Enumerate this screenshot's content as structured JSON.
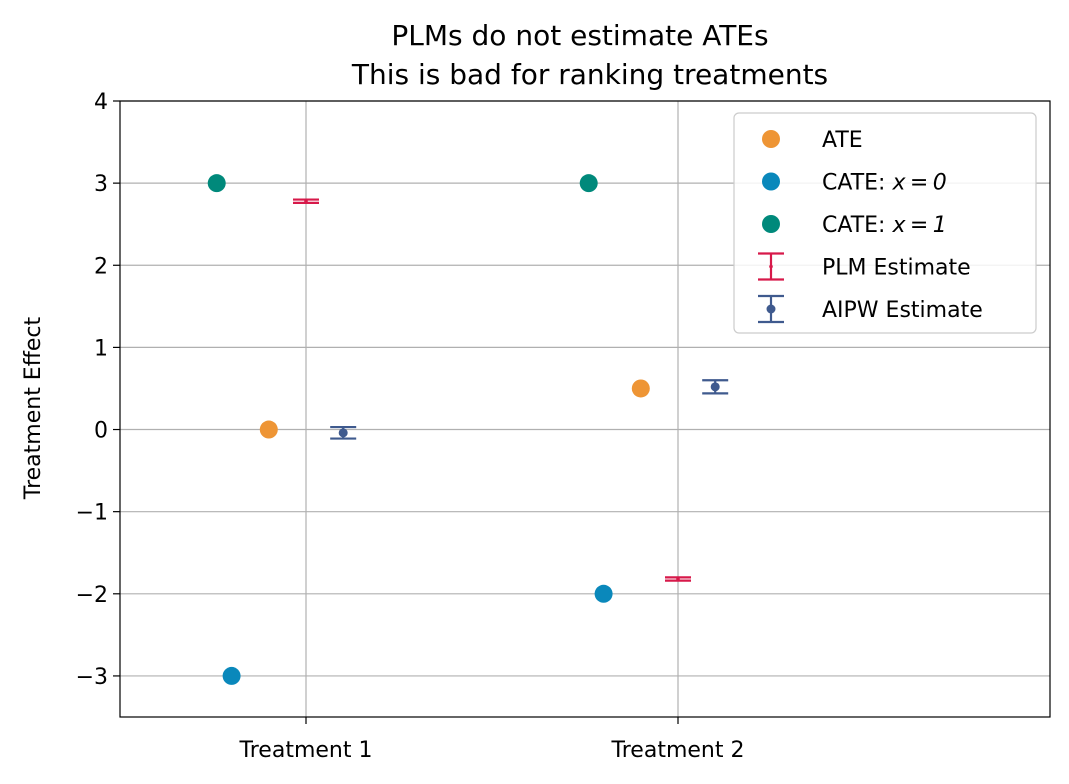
{
  "chart_data": {
    "type": "scatter",
    "title": "PLMs do not estimate ATEs",
    "subtitle": "This is bad for ranking treatments",
    "ylabel": "Treatment Effect",
    "xlabel": "",
    "categories": [
      "Treatment 1",
      "Treatment 2"
    ],
    "ylim": [
      -3.5,
      4
    ],
    "yticks": [
      4,
      3,
      2,
      1,
      0,
      -1,
      -2,
      -3
    ],
    "ytick_labels": [
      "4",
      "3",
      "2",
      "1",
      "0",
      "−1",
      "−2",
      "−3"
    ],
    "grid": true,
    "legend_position": "top-right",
    "series": [
      {
        "name": "ATE",
        "kind": "point",
        "color": "#EE9535",
        "values": [
          0,
          0.5
        ],
        "offset": -0.1
      },
      {
        "name": "CATE: x = 0",
        "name_prefix": "CATE: ",
        "name_math": "x = 0",
        "kind": "point",
        "color": "#0A88BB",
        "values": [
          -3,
          -2
        ],
        "offset": -0.2
      },
      {
        "name": "CATE: x = 1",
        "name_prefix": "CATE: ",
        "name_math": "x = 1",
        "kind": "point",
        "color": "#00897B",
        "values": [
          3,
          3
        ],
        "offset": -0.24
      },
      {
        "name": "PLM Estimate",
        "kind": "errorbar",
        "color": "#D7194A",
        "values": [
          2.78,
          -1.82
        ],
        "errors": [
          0.02,
          0.02
        ],
        "offset": 0.0
      },
      {
        "name": "AIPW Estimate",
        "kind": "errorbar",
        "color": "#3F5A8E",
        "values": [
          -0.04,
          0.52
        ],
        "errors": [
          0.07,
          0.08
        ],
        "offset": 0.1
      }
    ]
  }
}
